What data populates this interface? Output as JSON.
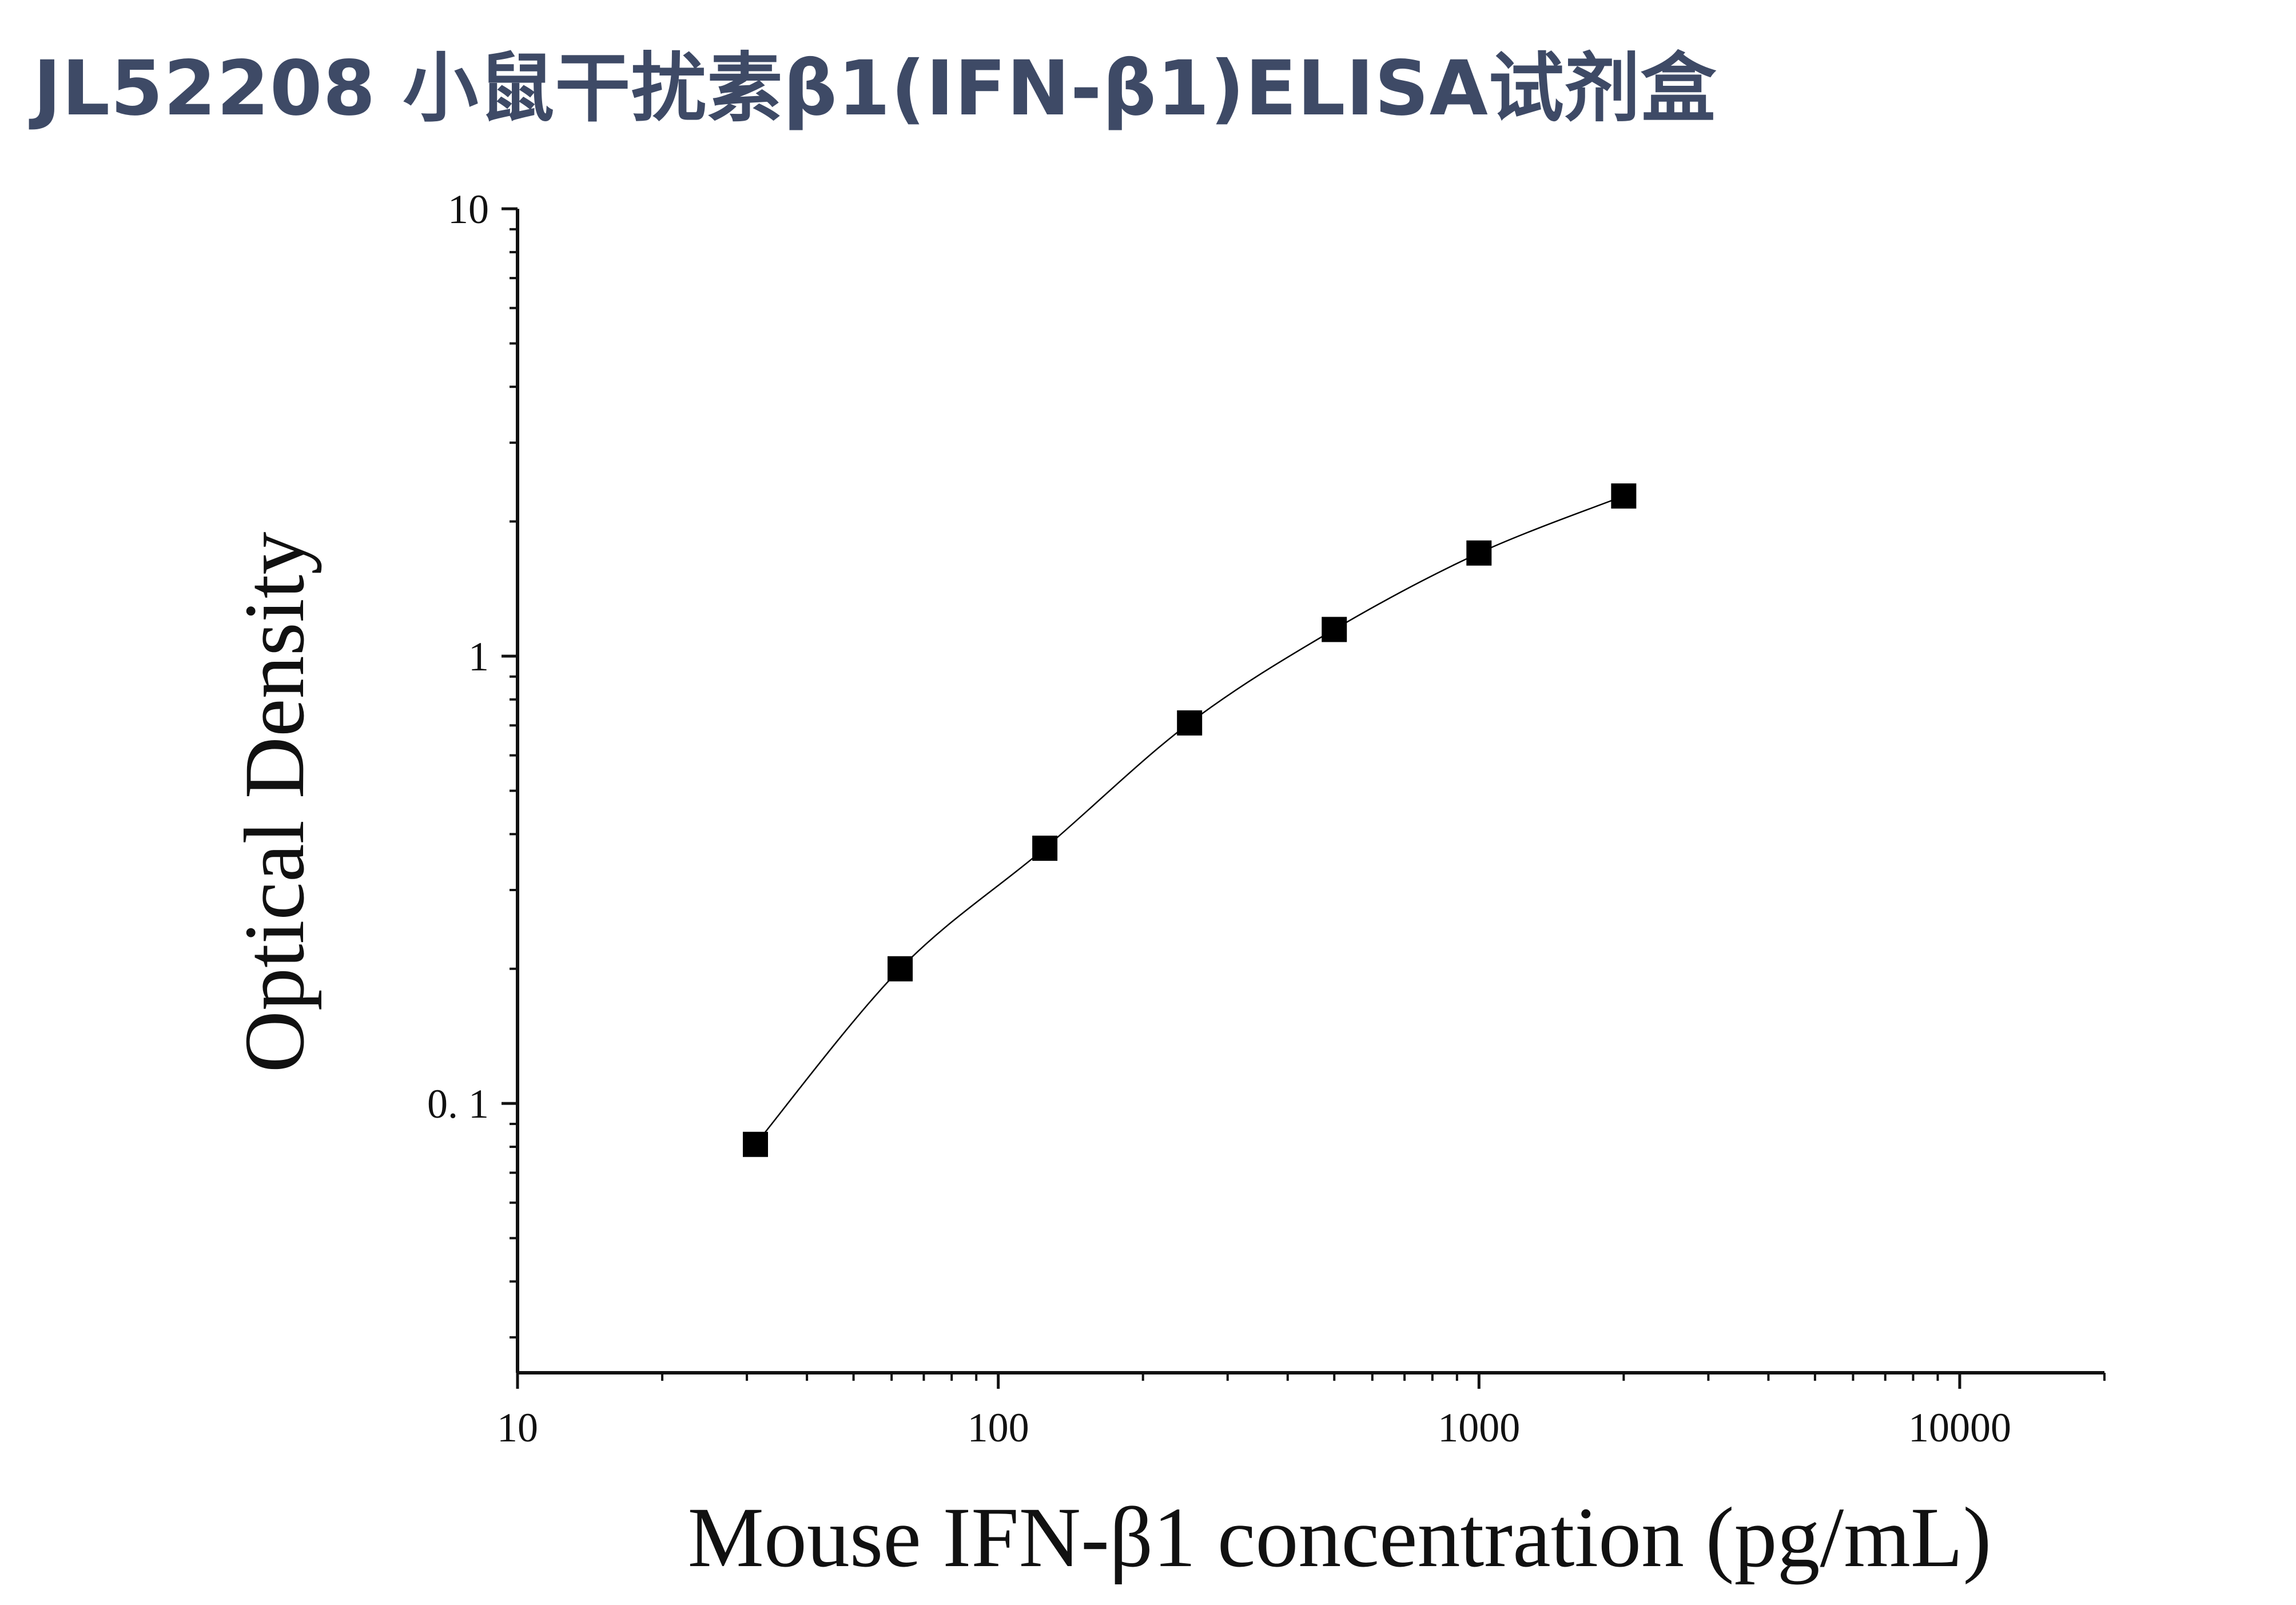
{
  "title": "JL52208 小鼠干扰素β1(IFN-β1)ELISA试剂盒",
  "colors": {
    "title": "#3e4a66",
    "axis": "#111111",
    "marker": "#000000"
  },
  "chart_data": {
    "type": "scatter",
    "title": "JL52208 小鼠干扰素β1(IFN-β1)ELISA试剂盒",
    "xlabel": "Mouse IFN-β1 concentration (pg/mL)",
    "ylabel": "Optical Density",
    "xscale": "log",
    "yscale": "log",
    "xlim": [
      10,
      20000
    ],
    "ylim": [
      0.025,
      10
    ],
    "xticks": [
      10,
      100,
      1000,
      10000
    ],
    "xtick_labels": [
      "10",
      "100",
      "1000",
      "10000"
    ],
    "yticks": [
      0.1,
      1,
      10
    ],
    "ytick_labels": [
      "0. 1",
      "1",
      "10"
    ],
    "grid": false,
    "legend": "none",
    "series": [
      {
        "marker": "square",
        "fit_line": true,
        "x": [
          31.25,
          62.5,
          125,
          250,
          500,
          1000,
          2000
        ],
        "y": [
          0.081,
          0.2,
          0.372,
          0.709,
          1.147,
          1.7,
          2.28
        ]
      }
    ]
  }
}
